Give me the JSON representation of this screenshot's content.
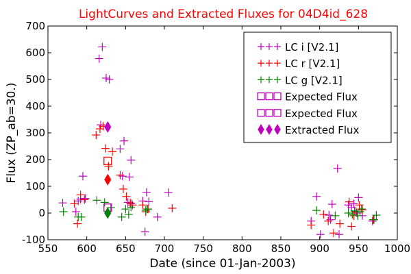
{
  "chart_data": {
    "type": "scatter",
    "title": "LightCurves and Extracted Fluxes for 04D4id_628",
    "xlabel": "Date (since 01-Jan-2003)",
    "ylabel": "Flux (ZP_ab=30.)",
    "xlim": [
      550,
      1000
    ],
    "ylim": [
      -100,
      700
    ],
    "xticks": [
      550,
      600,
      650,
      700,
      750,
      800,
      850,
      900,
      950,
      1000
    ],
    "yticks": [
      -100,
      0,
      100,
      200,
      300,
      400,
      500,
      600,
      700
    ],
    "grid": false,
    "legend_position": "top-right",
    "colors": {
      "magenta": "#bf00bf",
      "red": "#ff0000",
      "green": "#008000",
      "title": "#ff0000"
    },
    "series": [
      {
        "name": "LC i [V2.1]",
        "marker": "plus",
        "color": "#bf00bf",
        "points": [
          [
            569,
            38
          ],
          [
            586,
            5
          ],
          [
            589,
            45
          ],
          [
            592,
            52
          ],
          [
            595,
            138
          ],
          [
            598,
            55
          ],
          [
            616,
            578
          ],
          [
            620,
            622
          ],
          [
            625,
            505
          ],
          [
            629,
            500
          ],
          [
            618,
            330
          ],
          [
            643,
            240
          ],
          [
            646,
            138
          ],
          [
            648,
            270
          ],
          [
            655,
            135
          ],
          [
            657,
            198
          ],
          [
            653,
            40
          ],
          [
            657,
            35
          ],
          [
            672,
            45
          ],
          [
            675,
            -70
          ],
          [
            677,
            78
          ],
          [
            680,
            43
          ],
          [
            691,
            -15
          ],
          [
            705,
            77
          ],
          [
            889,
            -30
          ],
          [
            896,
            62
          ],
          [
            901,
            -80
          ],
          [
            912,
            -8
          ],
          [
            914,
            -25
          ],
          [
            916,
            33
          ],
          [
            923,
            167
          ],
          [
            925,
            -80
          ],
          [
            937,
            30
          ],
          [
            941,
            20
          ],
          [
            944,
            35
          ],
          [
            948,
            0
          ],
          [
            950,
            58
          ],
          [
            955,
            -10
          ],
          [
            968,
            -30
          ]
        ]
      },
      {
        "name": "LC r [V2.1]",
        "marker": "plus",
        "color": "#ff0000",
        "points": [
          [
            584,
            35
          ],
          [
            588,
            -40
          ],
          [
            592,
            68
          ],
          [
            597,
            50
          ],
          [
            612,
            292
          ],
          [
            617,
            315
          ],
          [
            621,
            325
          ],
          [
            624,
            242
          ],
          [
            628,
            175
          ],
          [
            633,
            230
          ],
          [
            643,
            142
          ],
          [
            647,
            90
          ],
          [
            651,
            62
          ],
          [
            656,
            38
          ],
          [
            659,
            30
          ],
          [
            672,
            30
          ],
          [
            676,
            5
          ],
          [
            679,
            15
          ],
          [
            710,
            18
          ],
          [
            889,
            -45
          ],
          [
            905,
            -5
          ],
          [
            911,
            -30
          ],
          [
            918,
            -75
          ],
          [
            926,
            -40
          ],
          [
            938,
            42
          ],
          [
            941,
            -50
          ],
          [
            944,
            -10
          ],
          [
            947,
            5
          ],
          [
            951,
            30
          ],
          [
            955,
            12
          ],
          [
            969,
            -25
          ]
        ]
      },
      {
        "name": "LC g [V2.1]",
        "marker": "plus",
        "color": "#008000",
        "points": [
          [
            570,
            5
          ],
          [
            589,
            -15
          ],
          [
            593,
            -15
          ],
          [
            613,
            48
          ],
          [
            623,
            40
          ],
          [
            631,
            20
          ],
          [
            645,
            -15
          ],
          [
            650,
            15
          ],
          [
            654,
            -5
          ],
          [
            657,
            22
          ],
          [
            676,
            10
          ],
          [
            678,
            15
          ],
          [
            896,
            10
          ],
          [
            920,
            -10
          ],
          [
            937,
            0
          ],
          [
            942,
            -5
          ],
          [
            945,
            8
          ],
          [
            949,
            -10
          ],
          [
            952,
            5
          ],
          [
            954,
            15
          ],
          [
            970,
            -25
          ],
          [
            973,
            -8
          ]
        ]
      },
      {
        "name": "Expected Flux",
        "marker": "square",
        "color": "#ff0000",
        "points": [
          [
            627,
            195
          ]
        ]
      },
      {
        "name": "Expected Flux",
        "marker": "square",
        "color": "#bf00bf",
        "points": [
          [
            627,
            20
          ]
        ]
      },
      {
        "name": "Extracted Flux",
        "marker": "diamond",
        "color": "#bf00bf",
        "points": [
          [
            627,
            322
          ]
        ]
      },
      {
        "name": "Extracted Flux",
        "marker": "diamond",
        "color": "#ff0000",
        "points": [
          [
            627,
            125
          ]
        ]
      },
      {
        "name": "Extracted Flux",
        "marker": "diamond",
        "color": "#008000",
        "points": [
          [
            627,
            0
          ]
        ]
      }
    ],
    "legend": [
      {
        "label": "LC i [V2.1]",
        "marker": "plus",
        "color": "#bf00bf"
      },
      {
        "label": "LC r [V2.1]",
        "marker": "plus",
        "color": "#ff0000"
      },
      {
        "label": "LC g [V2.1]",
        "marker": "plus",
        "color": "#008000"
      },
      {
        "label": "Expected Flux",
        "marker": "square",
        "color": "#bf00bf"
      },
      {
        "label": "Expected Flux",
        "marker": "square",
        "color": "#bf00bf"
      },
      {
        "label": "Extracted Flux",
        "marker": "diamond",
        "color": "#bf00bf"
      }
    ]
  }
}
